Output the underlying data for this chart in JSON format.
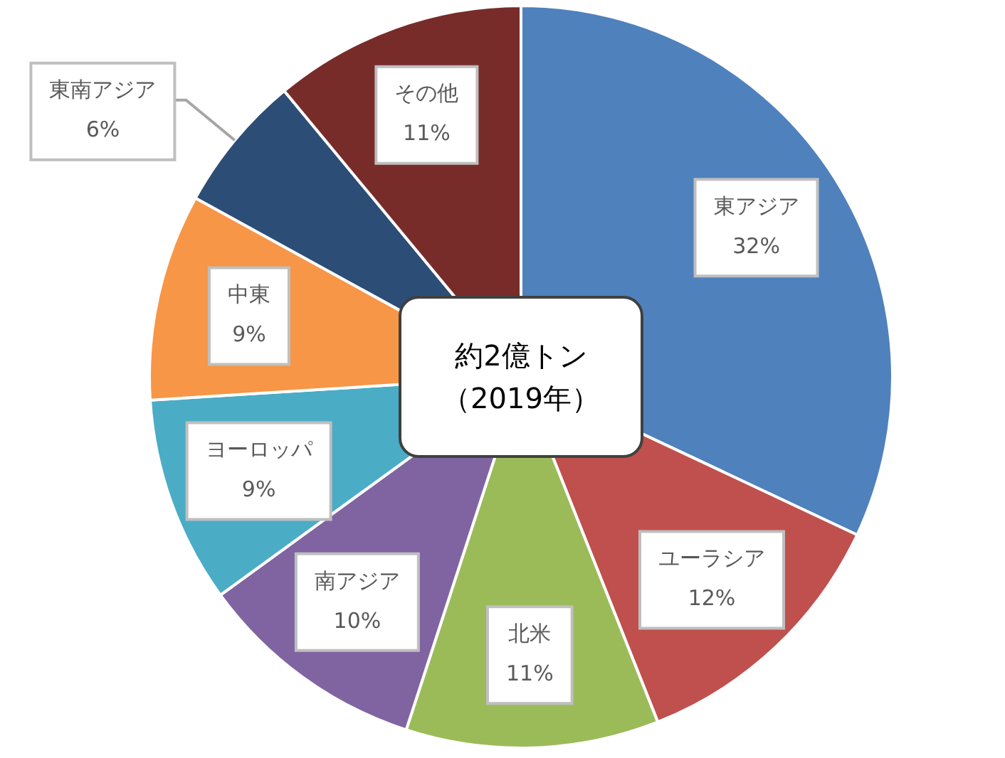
{
  "chart_data": {
    "type": "pie",
    "title": "約2億トン（2019年）",
    "categories": [
      "東アジア",
      "ユーラシア",
      "北米",
      "南アジア",
      "ヨーロッパ",
      "中東",
      "東南アジア",
      "その他"
    ],
    "values": [
      32,
      12,
      11,
      10,
      9,
      9,
      6,
      11
    ],
    "value_labels": [
      "32%",
      "12%",
      "11%",
      "10%",
      "9%",
      "9%",
      "6%",
      "11%"
    ],
    "colors": [
      "#4f81bd",
      "#c0504d",
      "#9bbb59",
      "#8064a2",
      "#4bacc6",
      "#f79646",
      "#2c4d75",
      "#772c2a"
    ],
    "legend": false
  }
}
